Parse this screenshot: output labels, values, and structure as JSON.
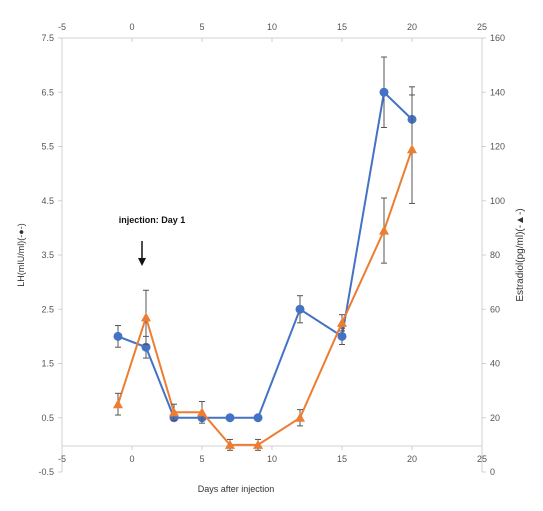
{
  "chart_data": {
    "type": "line",
    "title": "",
    "xlabel": "Days after injection",
    "ylabel_left": "LH(mIU/ml)(-●-)",
    "ylabel_right": "Estradiol(pg/ml)(-▲-)",
    "xlim": [
      -5,
      25
    ],
    "x_ticks": [
      -5,
      0,
      5,
      10,
      15,
      20,
      25
    ],
    "ylim_left": [
      -0.5,
      7.5
    ],
    "y_ticks_left": [
      -0.5,
      0.5,
      1.5,
      2.5,
      3.5,
      4.5,
      5.5,
      6.5,
      7.5
    ],
    "ylim_right": [
      0,
      160
    ],
    "y_ticks_right": [
      0,
      20,
      40,
      60,
      80,
      100,
      120,
      140,
      160
    ],
    "grid": false,
    "annotation": {
      "text": "injection: Day 1",
      "x": 1
    },
    "series": [
      {
        "axis": "left",
        "color": "#4472C4",
        "marker": "circle",
        "points": [
          {
            "x": -1,
            "y": 2.0,
            "err": 0.2
          },
          {
            "x": 1,
            "y": 1.8,
            "err": 0.2
          },
          {
            "x": 3,
            "y": 0.5,
            "err": 0.05
          },
          {
            "x": 5,
            "y": 0.5,
            "err": 0.05
          },
          {
            "x": 7,
            "y": 0.5,
            "err": 0.02
          },
          {
            "x": 9,
            "y": 0.5,
            "err": 0.02
          },
          {
            "x": 12,
            "y": 2.5,
            "err": 0.25
          },
          {
            "x": 15,
            "y": 2.0,
            "err": 0.15
          },
          {
            "x": 18,
            "y": 6.5,
            "err": 0.65
          },
          {
            "x": 20,
            "y": 6.0,
            "err": 0.6
          }
        ]
      },
      {
        "axis": "right",
        "color": "#ED7D31",
        "marker": "triangle",
        "points": [
          {
            "x": -1,
            "y": 25,
            "err": 4
          },
          {
            "x": 1,
            "y": 57,
            "err": 10
          },
          {
            "x": 3,
            "y": 22,
            "err": 3
          },
          {
            "x": 5,
            "y": 22,
            "err": 4
          },
          {
            "x": 7,
            "y": 10,
            "err": 2
          },
          {
            "x": 9,
            "y": 10,
            "err": 2
          },
          {
            "x": 12,
            "y": 20,
            "err": 3
          },
          {
            "x": 15,
            "y": 55,
            "err": 3
          },
          {
            "x": 18,
            "y": 89,
            "err": 12
          },
          {
            "x": 20,
            "y": 119,
            "err": 20
          }
        ]
      }
    ]
  }
}
